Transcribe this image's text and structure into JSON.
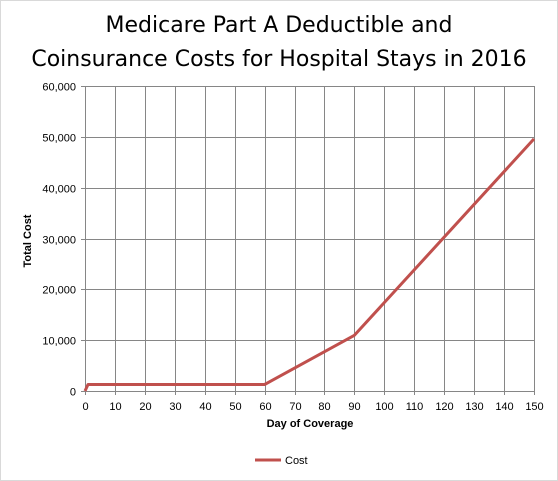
{
  "chart_data": {
    "type": "line",
    "title_lines": [
      "Medicare Part A Deductible and",
      "Coinsurance Costs for Hospital Stays in 2016"
    ],
    "xlabel": "Day of Coverage",
    "ylabel": "Total Cost",
    "xlim": [
      0,
      150
    ],
    "ylim": [
      0,
      60000
    ],
    "x_ticks": [
      0,
      10,
      20,
      30,
      40,
      50,
      60,
      70,
      80,
      90,
      100,
      110,
      120,
      130,
      140,
      150
    ],
    "y_ticks": [
      0,
      10000,
      20000,
      30000,
      40000,
      50000,
      60000
    ],
    "y_tick_labels": [
      "0",
      "10,000",
      "20,000",
      "30,000",
      "40,000",
      "50,000",
      "60,000"
    ],
    "grid": true,
    "legend_position": "bottom",
    "series": [
      {
        "name": "Cost",
        "color": "#c0504d",
        "x": [
          0,
          1,
          60,
          90,
          150
        ],
        "y": [
          0,
          1288,
          1288,
          10948,
          49588
        ]
      }
    ]
  }
}
